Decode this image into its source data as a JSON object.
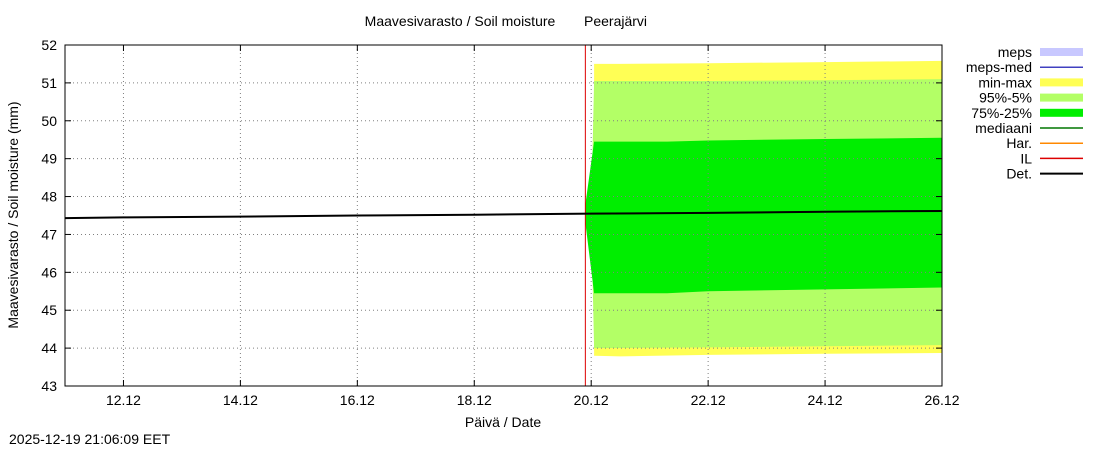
{
  "chart_data": {
    "type": "area",
    "title": "Maavesivarasto / Soil moisture",
    "location": "Peerajärvi",
    "xlabel": "Päivä / Date",
    "ylabel": "Maavesivarasto / Soil moisture (mm)",
    "xlim_days": [
      0,
      15
    ],
    "x_ticks": [
      {
        "day": 1,
        "label": "12.12"
      },
      {
        "day": 3,
        "label": "14.12"
      },
      {
        "day": 5,
        "label": "16.12"
      },
      {
        "day": 7,
        "label": "18.12"
      },
      {
        "day": 9,
        "label": "20.12"
      },
      {
        "day": 11,
        "label": "22.12"
      },
      {
        "day": 13,
        "label": "24.12"
      },
      {
        "day": 15,
        "label": "26.12"
      }
    ],
    "ylim": [
      43,
      52
    ],
    "y_ticks": [
      43,
      44,
      45,
      46,
      47,
      48,
      49,
      50,
      51,
      52
    ],
    "grid": true,
    "forecast_start_day": 8.9,
    "legend": [
      {
        "key": "meps",
        "label": "meps",
        "color": "#c8c8ff",
        "style": "box"
      },
      {
        "key": "meps-med",
        "label": "meps-med",
        "color": "#4040c0",
        "style": "line"
      },
      {
        "key": "min-max",
        "label": "min-max",
        "color": "#ffff55",
        "style": "box"
      },
      {
        "key": "p95-5",
        "label": "95%-5%",
        "color": "#b3ff66",
        "style": "box"
      },
      {
        "key": "p75-25",
        "label": "75%-25%",
        "color": "#00ee00",
        "style": "box"
      },
      {
        "key": "mediaani",
        "label": "mediaani",
        "color": "#007700",
        "style": "line"
      },
      {
        "key": "har",
        "label": "Har.",
        "color": "#ff8800",
        "style": "line"
      },
      {
        "key": "il",
        "label": "IL",
        "color": "#dd0000",
        "style": "line"
      },
      {
        "key": "det",
        "label": "Det.",
        "color": "#000000",
        "style": "line"
      }
    ],
    "series": [
      {
        "name": "Det.",
        "x": [
          0,
          1,
          3,
          5,
          7,
          9,
          11,
          13,
          15
        ],
        "y": [
          47.43,
          47.45,
          47.47,
          47.5,
          47.52,
          47.55,
          47.57,
          47.6,
          47.62
        ]
      },
      {
        "name": "min-max",
        "x": [
          9.05,
          9.5,
          11,
          13,
          15
        ],
        "lower": [
          43.8,
          43.78,
          43.82,
          43.85,
          43.87
        ],
        "upper": [
          51.5,
          51.5,
          51.52,
          51.55,
          51.58
        ]
      },
      {
        "name": "95%-5%",
        "x": [
          9.0,
          9.05,
          11,
          13,
          15
        ],
        "lower": [
          47.5,
          44.0,
          44.02,
          44.05,
          44.08
        ],
        "upper": [
          47.6,
          51.05,
          51.05,
          51.07,
          51.1
        ]
      },
      {
        "name": "75%-25%",
        "x": [
          8.9,
          9.05,
          10.3,
          11,
          13,
          15
        ],
        "lower": [
          47.3,
          45.45,
          45.45,
          45.5,
          45.55,
          45.6
        ],
        "upper": [
          47.8,
          49.45,
          49.45,
          49.48,
          49.52,
          49.55
        ]
      },
      {
        "name": "mediaani",
        "x": [
          9,
          11,
          13,
          15
        ],
        "y": [
          47.55,
          47.57,
          47.6,
          47.62
        ]
      }
    ]
  },
  "footer": {
    "timestamp": "2025-12-19 21:06:09 EET"
  }
}
